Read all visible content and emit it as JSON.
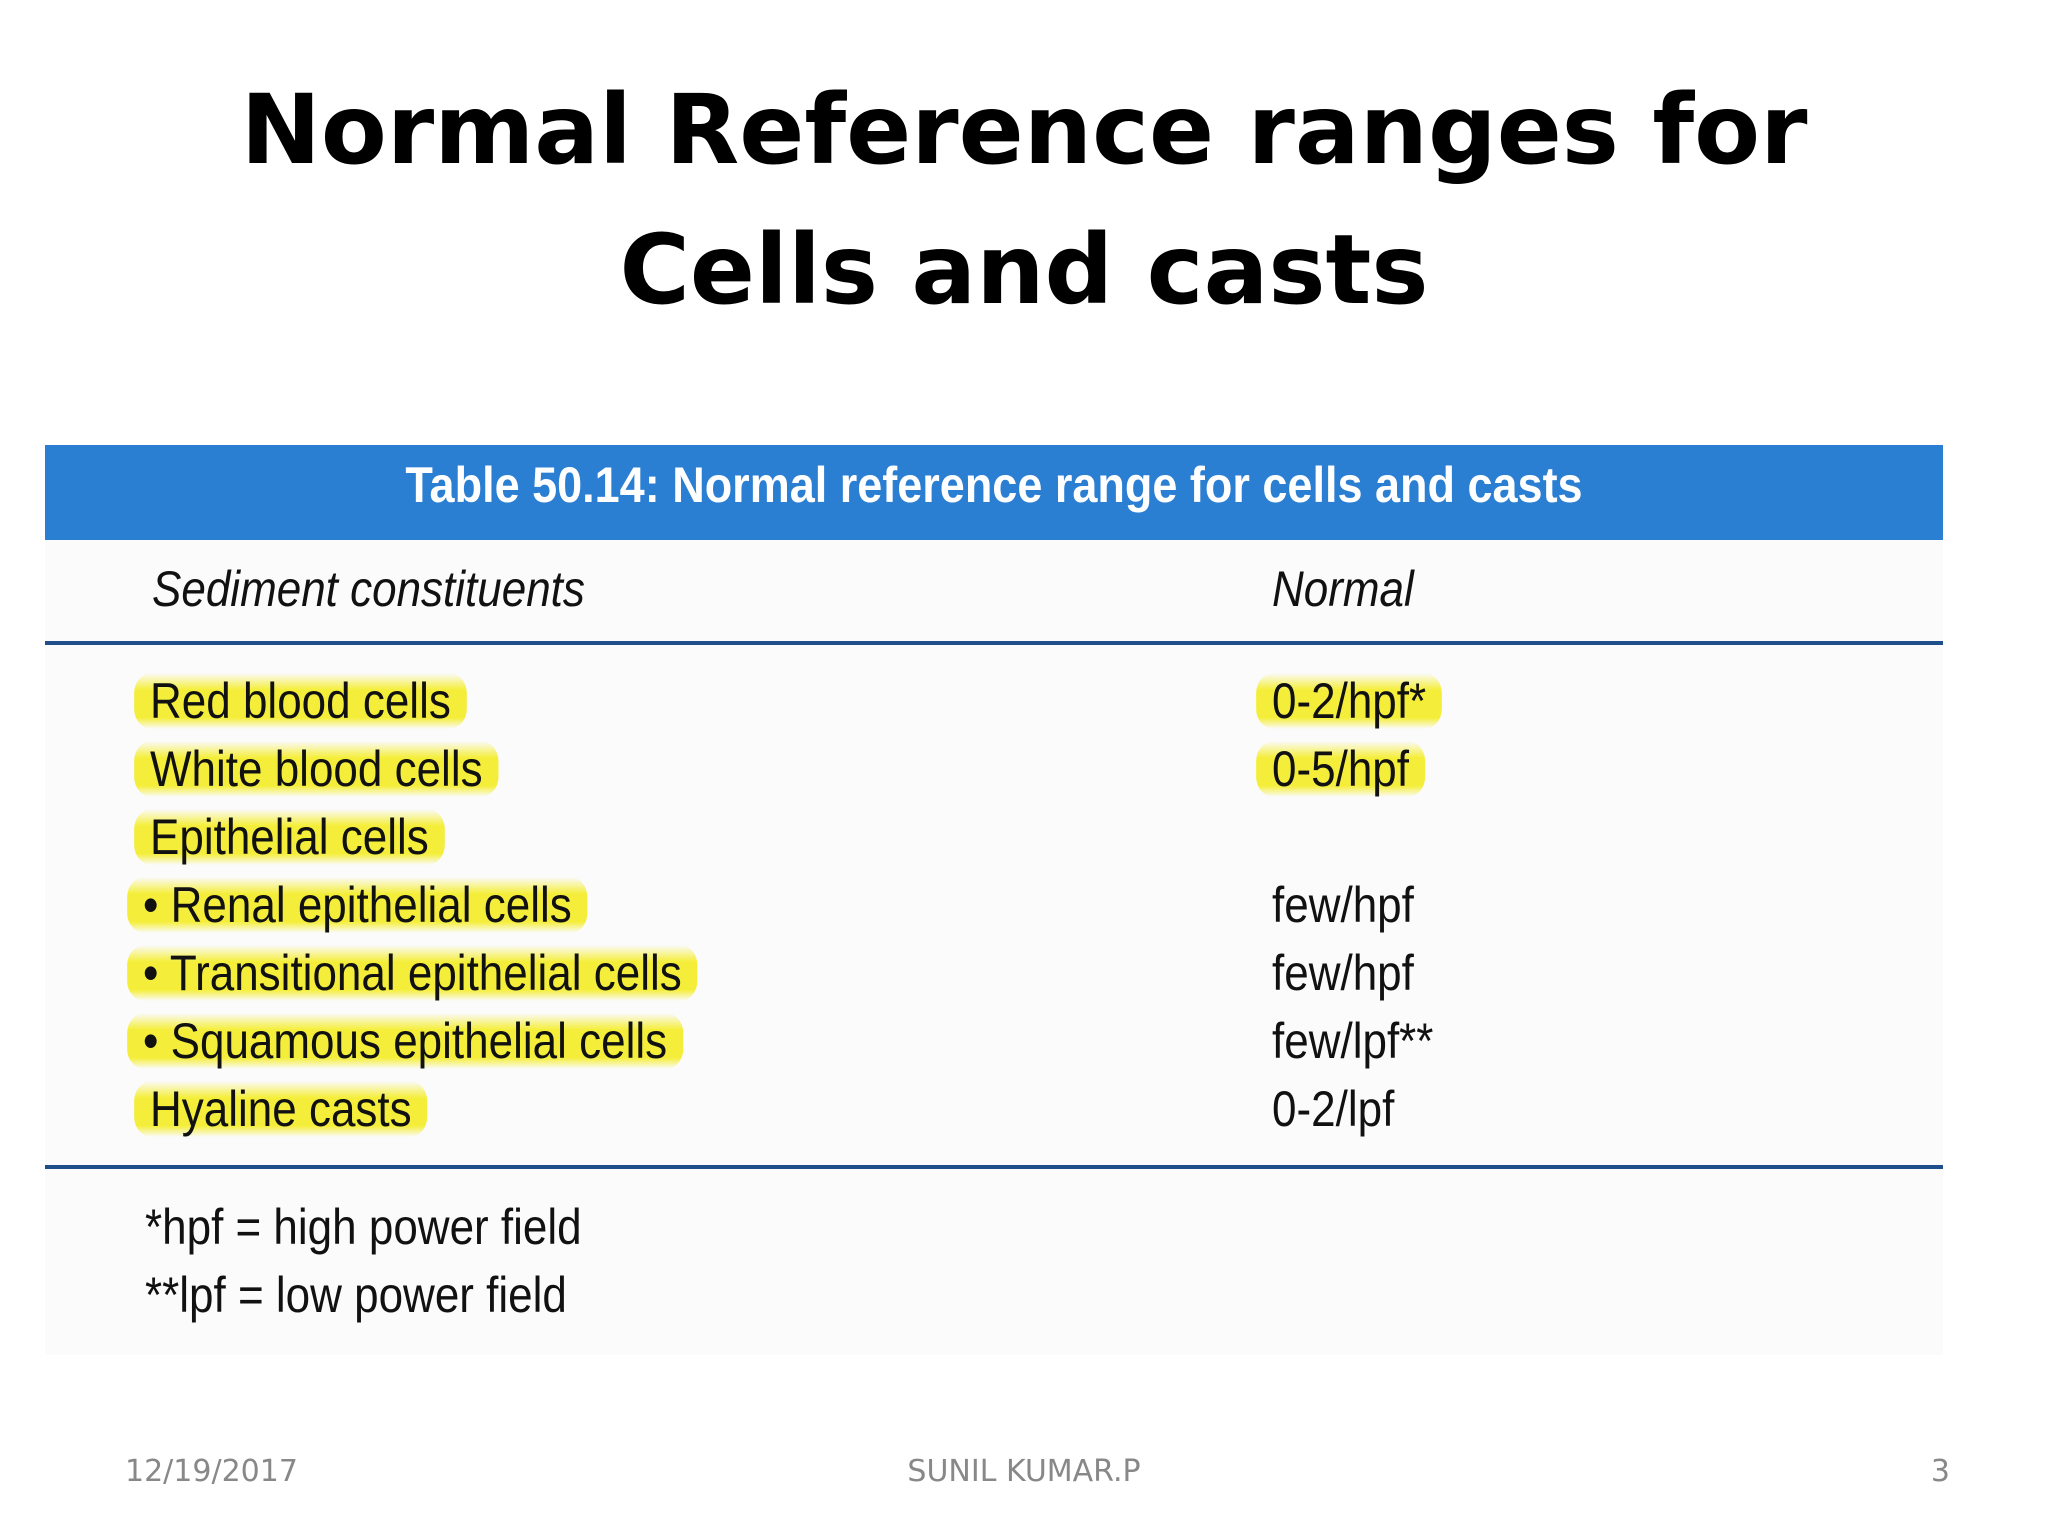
{
  "title": "Normal Reference ranges for Cells and casts",
  "table": {
    "caption": "Table 50.14: Normal reference range for cells and casts",
    "headers": [
      "Sediment constituents",
      "Normal"
    ],
    "rows": [
      {
        "constituent": "Red blood cells",
        "normal": "0-2/hpf*"
      },
      {
        "constituent": "White blood cells",
        "normal": "0-5/hpf"
      },
      {
        "constituent": "Epithelial cells",
        "normal": ""
      },
      {
        "constituent": "• Renal epithelial cells",
        "normal": "few/hpf"
      },
      {
        "constituent": "• Transitional epithelial cells",
        "normal": "few/hpf"
      },
      {
        "constituent": "• Squamous epithelial cells",
        "normal": "few/lpf**"
      },
      {
        "constituent": "Hyaline casts",
        "normal": "0-2/lpf"
      }
    ],
    "footnotes": [
      "*hpf = high power field",
      "**lpf = low power field"
    ]
  },
  "footer": {
    "date": "12/19/2017",
    "author": "SUNIL KUMAR.P",
    "page_number": "3"
  },
  "colors": {
    "caption_banner": "#2b7fd2",
    "highlighter": "#f4ee3a",
    "rule": "#1f4f8a"
  }
}
